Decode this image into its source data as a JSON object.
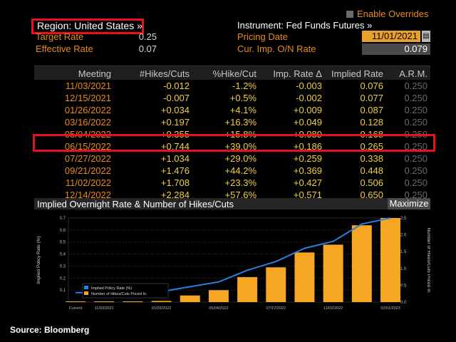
{
  "header": {
    "region_label": "Region: United States »",
    "enable_overrides": "Enable Overrides",
    "target_rate_label": "Target Rate",
    "target_rate_value": "0.25",
    "effective_rate_label": "Effective Rate",
    "effective_rate_value": "0.07",
    "instrument_label": "Instrument: Fed Funds Futures »",
    "pricing_date_label": "Pricing Date",
    "pricing_date_value": "11/01/2021",
    "cur_imp_label": "Cur. Imp. O/N Rate",
    "cur_imp_value": "0.079"
  },
  "table": {
    "columns": [
      "Meeting",
      "#Hikes/Cuts",
      "%Hike/Cut",
      "Imp. Rate Δ",
      "Implied Rate",
      "A.R.M."
    ],
    "rows": [
      [
        "11/03/2021",
        "-0.012",
        "-1.2%",
        "-0.003",
        "0.076",
        "0.250"
      ],
      [
        "12/15/2021",
        "-0.007",
        "+0.5%",
        "-0.002",
        "0.077",
        "0.250"
      ],
      [
        "01/26/2022",
        "+0.034",
        "+4.1%",
        "+0.009",
        "0.087",
        "0.250"
      ],
      [
        "03/16/2022",
        "+0.197",
        "+16.3%",
        "+0.049",
        "0.128",
        "0.250"
      ],
      [
        "05/04/2022",
        "+0.355",
        "+15.8%",
        "+0.089",
        "0.168",
        "0.250"
      ],
      [
        "06/15/2022",
        "+0.744",
        "+39.0%",
        "+0.186",
        "0.265",
        "0.250"
      ],
      [
        "07/27/2022",
        "+1.034",
        "+29.0%",
        "+0.259",
        "0.338",
        "0.250"
      ],
      [
        "09/21/2022",
        "+1.476",
        "+44.2%",
        "+0.369",
        "0.448",
        "0.250"
      ],
      [
        "11/02/2022",
        "+1.708",
        "+23.3%",
        "+0.427",
        "0.506",
        "0.250"
      ],
      [
        "12/14/2022",
        "+2.284",
        "+57.6%",
        "+0.571",
        "0.650",
        "0.250"
      ]
    ]
  },
  "chart_header": {
    "title": "Implied Overnight Rate & Number of Hikes/Cuts",
    "maximize_label": "Maximize"
  },
  "chart_data": {
    "type": "bar",
    "categories": [
      "Current",
      "11/03/2021",
      "12/15/2021",
      "01/26/2022",
      "03/16/2022",
      "05/04/2022",
      "06/15/2022",
      "07/27/2022",
      "09/21/2022",
      "11/02/2022",
      "12/14/2022",
      "02/01/2023"
    ],
    "x_tick_labels": [
      "Current",
      "11/03/2021",
      "01/26/2022",
      "05/04/2022",
      "07/27/2022",
      "11/02/2022",
      "02/01/2023"
    ],
    "series": [
      {
        "name": "Implied Policy Rate (%)",
        "type": "line",
        "axis": "left",
        "color": "#2a7fe0",
        "values": [
          0.079,
          0.076,
          0.077,
          0.087,
          0.128,
          0.168,
          0.265,
          0.338,
          0.448,
          0.506,
          0.65,
          0.7
        ]
      },
      {
        "name": "Number of Hikes/Cuts Priced In",
        "type": "bar",
        "axis": "right",
        "color": "#f5a623",
        "values": [
          0,
          -0.012,
          -0.007,
          0.034,
          0.197,
          0.355,
          0.744,
          1.034,
          1.476,
          1.708,
          2.284,
          2.5
        ]
      }
    ],
    "ylabel_left": "Implied Policy Rate (%)",
    "ylabel_right": "Number of Hikes/Cuts Priced In",
    "ylim_left": [
      0,
      0.7
    ],
    "yticks_left": [
      "0.1",
      "0.2",
      "0.3",
      "0.4",
      "0.5",
      "0.6",
      "0.7"
    ],
    "ylim_right": [
      0,
      2.5
    ],
    "yticks_right": [
      "0.0",
      "0.5",
      "1.0",
      "1.5",
      "2.0",
      "2.5"
    ],
    "legend_position": "bottom-left"
  },
  "source": "Source: Bloomberg"
}
